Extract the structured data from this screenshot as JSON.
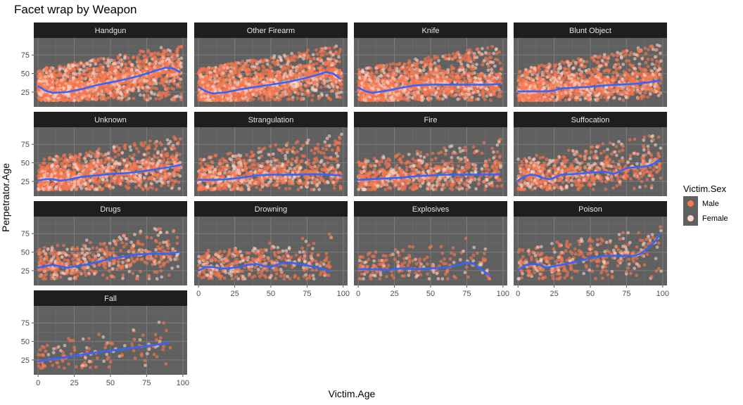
{
  "chart_data": {
    "type": "scatter",
    "title": "Facet wrap by Weapon",
    "xlabel": "Victim.Age",
    "ylabel": "Perpetrator.Age",
    "xlim": [
      -3,
      103
    ],
    "ylim": [
      5,
      98
    ],
    "x_ticks": [
      0,
      25,
      50,
      75,
      100
    ],
    "y_ticks": [
      25,
      50,
      75
    ],
    "x_tick_labels": [
      "0",
      "25",
      "50",
      "75",
      "100"
    ],
    "y_tick_labels": [
      "25",
      "50",
      "75"
    ],
    "grid": true,
    "legend": {
      "title": "Victim.Sex",
      "position": "right",
      "entries": [
        {
          "label": "Male",
          "color": "#f8764e"
        },
        {
          "label": "Female",
          "color": "#fdd6c6"
        }
      ]
    },
    "colors": {
      "panel_bg": "#606060",
      "strip_bg": "#1e1e1e",
      "strip_text": "#e6e6e6",
      "smooth_line": "#3366ff"
    },
    "facets": [
      {
        "name": "Handgun",
        "n_points": 2000,
        "x_range": [
          0,
          99
        ],
        "y_range": [
          14,
          90
        ],
        "smooth": [
          [
            0,
            33
          ],
          [
            5,
            27
          ],
          [
            10,
            24
          ],
          [
            20,
            25
          ],
          [
            30,
            29
          ],
          [
            40,
            34
          ],
          [
            50,
            38
          ],
          [
            60,
            42
          ],
          [
            70,
            47
          ],
          [
            80,
            53
          ],
          [
            88,
            58
          ],
          [
            93,
            57
          ],
          [
            98,
            52
          ]
        ]
      },
      {
        "name": "Other Firearm",
        "n_points": 1800,
        "x_range": [
          0,
          99
        ],
        "y_range": [
          14,
          90
        ],
        "smooth": [
          [
            0,
            32
          ],
          [
            5,
            26
          ],
          [
            10,
            23
          ],
          [
            20,
            25
          ],
          [
            30,
            29
          ],
          [
            40,
            32
          ],
          [
            50,
            35
          ],
          [
            60,
            38
          ],
          [
            70,
            42
          ],
          [
            80,
            47
          ],
          [
            88,
            52
          ],
          [
            93,
            50
          ],
          [
            98,
            43
          ]
        ]
      },
      {
        "name": "Knife",
        "n_points": 1600,
        "x_range": [
          0,
          99
        ],
        "y_range": [
          14,
          90
        ],
        "smooth": [
          [
            0,
            31
          ],
          [
            5,
            26
          ],
          [
            10,
            24
          ],
          [
            20,
            27
          ],
          [
            30,
            31
          ],
          [
            40,
            34
          ],
          [
            50,
            35
          ],
          [
            60,
            35
          ],
          [
            70,
            35
          ],
          [
            80,
            35
          ],
          [
            90,
            35
          ],
          [
            98,
            36
          ]
        ]
      },
      {
        "name": "Blunt Object",
        "n_points": 1400,
        "x_range": [
          0,
          99
        ],
        "y_range": [
          14,
          90
        ],
        "smooth": [
          [
            0,
            26
          ],
          [
            10,
            26
          ],
          [
            20,
            26
          ],
          [
            25,
            27
          ],
          [
            30,
            30
          ],
          [
            40,
            31
          ],
          [
            50,
            32
          ],
          [
            60,
            34
          ],
          [
            70,
            35
          ],
          [
            80,
            36
          ],
          [
            90,
            38
          ],
          [
            98,
            41
          ]
        ]
      },
      {
        "name": "Unknown",
        "n_points": 1200,
        "x_range": [
          0,
          99
        ],
        "y_range": [
          14,
          88
        ],
        "smooth": [
          [
            0,
            26
          ],
          [
            5,
            28
          ],
          [
            10,
            28
          ],
          [
            15,
            26
          ],
          [
            20,
            27
          ],
          [
            25,
            29
          ],
          [
            30,
            31
          ],
          [
            40,
            33
          ],
          [
            50,
            35
          ],
          [
            60,
            36
          ],
          [
            70,
            38
          ],
          [
            80,
            41
          ],
          [
            90,
            44
          ],
          [
            98,
            47
          ]
        ]
      },
      {
        "name": "Strangulation",
        "n_points": 900,
        "x_range": [
          0,
          99
        ],
        "y_range": [
          14,
          90
        ],
        "smooth": [
          [
            0,
            27
          ],
          [
            5,
            27
          ],
          [
            10,
            27
          ],
          [
            20,
            28
          ],
          [
            30,
            30
          ],
          [
            40,
            33
          ],
          [
            50,
            34
          ],
          [
            60,
            34
          ],
          [
            70,
            34
          ],
          [
            80,
            35
          ],
          [
            90,
            34
          ],
          [
            98,
            33
          ]
        ]
      },
      {
        "name": "Fire",
        "n_points": 700,
        "x_range": [
          0,
          99
        ],
        "y_range": [
          14,
          85
        ],
        "smooth": [
          [
            0,
            27
          ],
          [
            10,
            28
          ],
          [
            20,
            29
          ],
          [
            30,
            30
          ],
          [
            40,
            32
          ],
          [
            50,
            33
          ],
          [
            60,
            34
          ],
          [
            70,
            34
          ],
          [
            80,
            34
          ],
          [
            90,
            34
          ],
          [
            98,
            35
          ]
        ]
      },
      {
        "name": "Suffocation",
        "n_points": 700,
        "x_range": [
          0,
          99
        ],
        "y_range": [
          14,
          90
        ],
        "smooth": [
          [
            0,
            26
          ],
          [
            4,
            31
          ],
          [
            8,
            34
          ],
          [
            13,
            33
          ],
          [
            18,
            29
          ],
          [
            22,
            28
          ],
          [
            25,
            30
          ],
          [
            30,
            34
          ],
          [
            40,
            35
          ],
          [
            50,
            37
          ],
          [
            60,
            38
          ],
          [
            66,
            35
          ],
          [
            70,
            38
          ],
          [
            75,
            43
          ],
          [
            80,
            44
          ],
          [
            88,
            45
          ],
          [
            92,
            47
          ],
          [
            98,
            54
          ]
        ]
      },
      {
        "name": "Drugs",
        "n_points": 500,
        "x_range": [
          0,
          97
        ],
        "y_range": [
          14,
          88
        ],
        "smooth": [
          [
            0,
            29
          ],
          [
            5,
            31
          ],
          [
            10,
            33
          ],
          [
            15,
            31
          ],
          [
            20,
            29
          ],
          [
            30,
            32
          ],
          [
            40,
            36
          ],
          [
            50,
            41
          ],
          [
            60,
            44
          ],
          [
            70,
            47
          ],
          [
            80,
            48
          ],
          [
            90,
            48
          ],
          [
            97,
            50
          ]
        ]
      },
      {
        "name": "Drowning",
        "n_points": 400,
        "x_range": [
          0,
          92
        ],
        "y_range": [
          14,
          75
        ],
        "smooth": [
          [
            0,
            25
          ],
          [
            5,
            30
          ],
          [
            10,
            30
          ],
          [
            15,
            28
          ],
          [
            20,
            28
          ],
          [
            28,
            30
          ],
          [
            35,
            33
          ],
          [
            40,
            34
          ],
          [
            45,
            31
          ],
          [
            50,
            30
          ],
          [
            57,
            35
          ],
          [
            62,
            36
          ],
          [
            70,
            34
          ],
          [
            80,
            30
          ],
          [
            85,
            28
          ],
          [
            91,
            24
          ]
        ]
      },
      {
        "name": "Explosives",
        "n_points": 200,
        "x_range": [
          0,
          92
        ],
        "y_range": [
          14,
          75
        ],
        "smooth": [
          [
            0,
            27
          ],
          [
            10,
            27
          ],
          [
            20,
            26
          ],
          [
            30,
            28
          ],
          [
            40,
            27
          ],
          [
            50,
            28
          ],
          [
            60,
            29
          ],
          [
            70,
            33
          ],
          [
            75,
            36
          ],
          [
            80,
            34
          ],
          [
            85,
            27
          ],
          [
            91,
            18
          ]
        ]
      },
      {
        "name": "Poison",
        "n_points": 350,
        "x_range": [
          0,
          99
        ],
        "y_range": [
          14,
          88
        ],
        "smooth": [
          [
            0,
            26
          ],
          [
            5,
            32
          ],
          [
            10,
            34
          ],
          [
            15,
            33
          ],
          [
            20,
            29
          ],
          [
            30,
            33
          ],
          [
            40,
            37
          ],
          [
            50,
            42
          ],
          [
            60,
            45
          ],
          [
            70,
            45
          ],
          [
            80,
            45
          ],
          [
            85,
            48
          ],
          [
            90,
            56
          ],
          [
            95,
            65
          ],
          [
            98,
            74
          ]
        ]
      },
      {
        "name": "Fall",
        "n_points": 130,
        "x_range": [
          0,
          92
        ],
        "y_range": [
          14,
          80
        ],
        "smooth": [
          [
            0,
            23
          ],
          [
            20,
            29
          ],
          [
            40,
            35
          ],
          [
            60,
            40
          ],
          [
            80,
            45
          ],
          [
            90,
            48
          ]
        ]
      }
    ]
  }
}
